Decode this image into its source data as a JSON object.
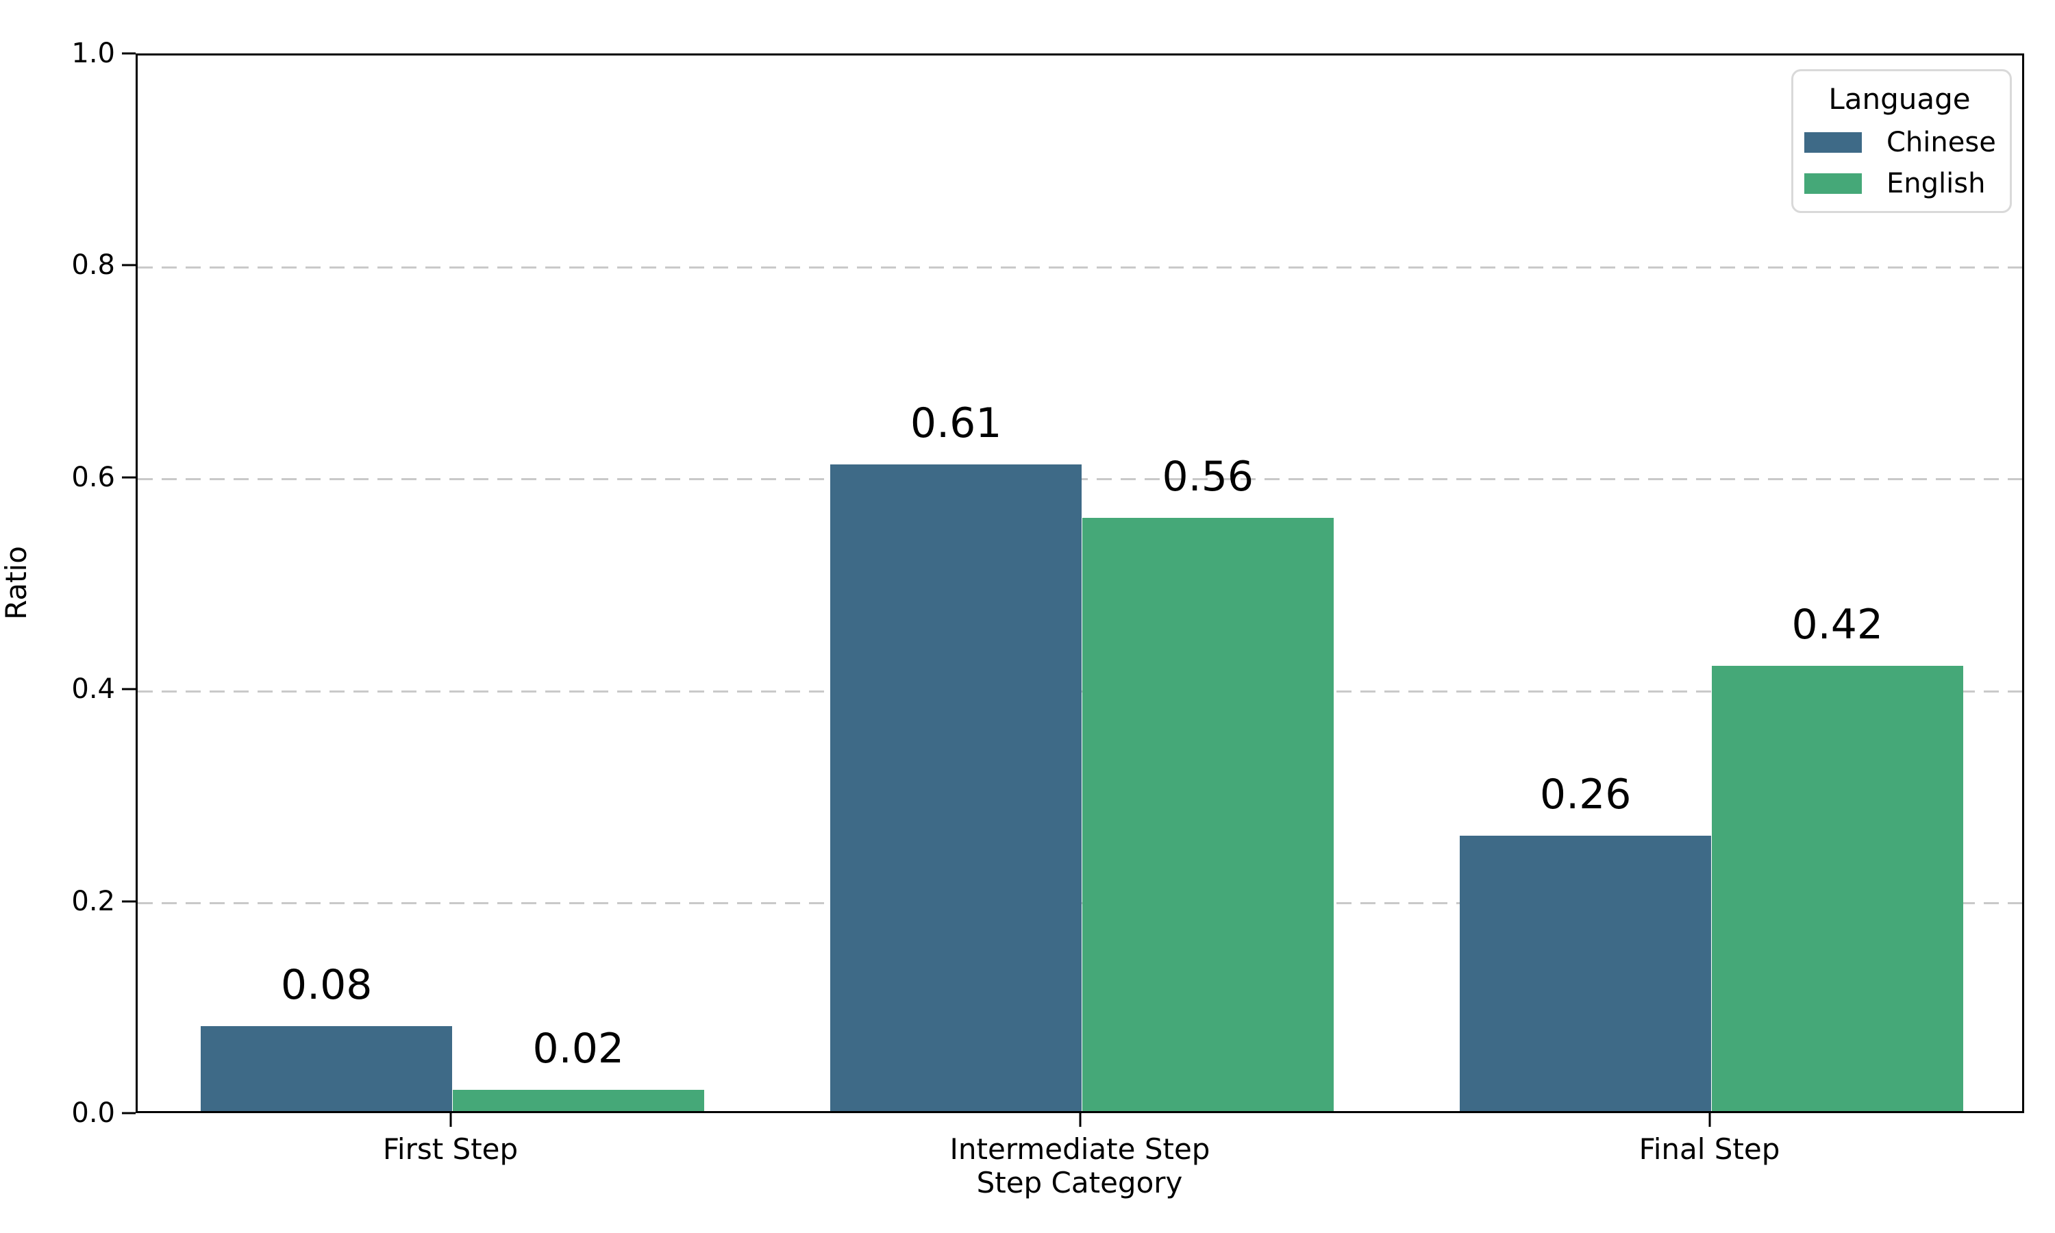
{
  "chart_data": {
    "type": "bar",
    "title": "",
    "xlabel": "Step Category",
    "ylabel": "Ratio",
    "categories": [
      "First Step",
      "Intermediate Step",
      "Final Step"
    ],
    "series": [
      {
        "name": "Chinese",
        "color": "#3e6a87",
        "values": [
          0.08,
          0.61,
          0.26
        ],
        "bar_labels": [
          "0.08",
          "0.61",
          "0.26"
        ]
      },
      {
        "name": "English",
        "color": "#45a878",
        "values": [
          0.02,
          0.56,
          0.42
        ],
        "bar_labels": [
          "0.02",
          "0.56",
          "0.42"
        ]
      }
    ],
    "ylim": [
      0.0,
      1.0
    ],
    "yticks": [
      0.0,
      0.2,
      0.4,
      0.6,
      0.8,
      1.0
    ],
    "ytick_labels": [
      "0.0",
      "0.2",
      "0.4",
      "0.6",
      "0.8",
      "1.0"
    ],
    "grid": "horizontal dashed, on ticks 0.2-0.8, behind bars",
    "legend": {
      "title": "Language",
      "entries": [
        "Chinese",
        "English"
      ],
      "position": "upper right"
    }
  },
  "colors": {
    "chinese_bar": "#3e6a87",
    "english_bar": "#45a878",
    "gridline": "#c9c9c9",
    "spine": "#000000",
    "text": "#000000",
    "legend_border": "#d9d9d9",
    "background": "#ffffff"
  }
}
